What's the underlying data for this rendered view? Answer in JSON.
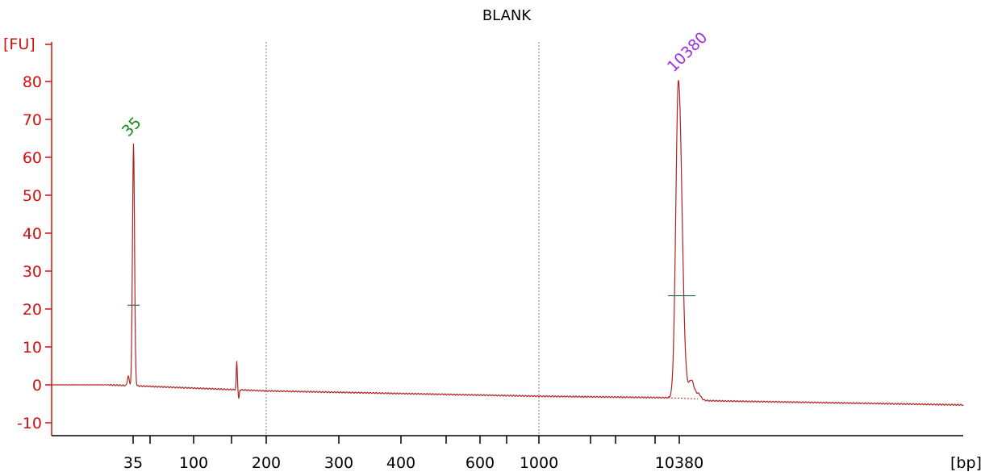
{
  "chart_data": {
    "type": "line",
    "title": "BLANK",
    "ylabel": "[FU]",
    "xlabel": "[bp]",
    "ylim": [
      -13,
      90
    ],
    "y_ticks": [
      -10,
      0,
      10,
      20,
      30,
      40,
      50,
      60,
      70,
      80
    ],
    "x_axis_scale": "nonlinear (electropherogram sizing)",
    "x_tick_labels": [
      {
        "label": "35"
      },
      {
        "label": ""
      },
      {
        "label": "100"
      },
      {
        "label": ""
      },
      {
        "label": "200"
      },
      {
        "label": "300"
      },
      {
        "label": "400"
      },
      {
        "label": ""
      },
      {
        "label": "600"
      },
      {
        "label": ""
      },
      {
        "label": "1000"
      },
      {
        "label": ""
      },
      {
        "label": ""
      },
      {
        "label": ""
      },
      {
        "label": "10380"
      }
    ],
    "peak_labels": [
      {
        "label": "35",
        "color": "#1a8a1a",
        "fu": 64
      },
      {
        "label": "10380",
        "color": "#9b30e0",
        "fu": 81
      }
    ],
    "vertical_gridlines_at": [
      "200",
      "1000"
    ],
    "colors": {
      "trace": "#b22222",
      "axis": "#d01010",
      "gridline": "#808080",
      "marker": "#2e6b4e"
    }
  }
}
